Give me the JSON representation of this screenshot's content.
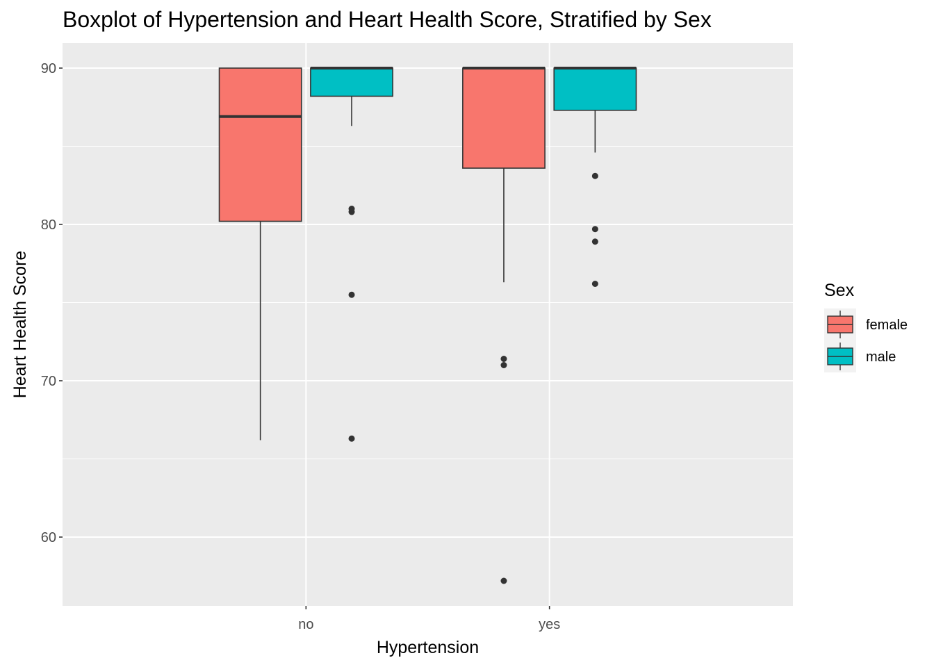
{
  "chart_data": {
    "type": "boxplot",
    "title": "Boxplot of Hypertension and Heart Health Score, Stratified by Sex",
    "xlabel": "Hypertension",
    "ylabel": "Heart Health Score",
    "categories": [
      "no",
      "yes"
    ],
    "ylim": [
      55.6,
      91.6
    ],
    "yticks": [
      60,
      70,
      80,
      90
    ],
    "grid": true,
    "legend": {
      "title": "Sex",
      "position": "right"
    },
    "series": [
      {
        "name": "female",
        "color": "#F8766D",
        "boxes": [
          {
            "category": "no",
            "lower_whisker": 66.2,
            "q1": 80.2,
            "median": 86.9,
            "q3": 90.0,
            "upper_whisker": 90.0,
            "outliers": []
          },
          {
            "category": "yes",
            "lower_whisker": 76.3,
            "q1": 83.6,
            "median": 90.0,
            "q3": 90.0,
            "upper_whisker": 90.0,
            "outliers": [
              71.4,
              71.0,
              57.2
            ]
          }
        ]
      },
      {
        "name": "male",
        "color": "#00BFC4",
        "boxes": [
          {
            "category": "no",
            "lower_whisker": 86.3,
            "q1": 88.2,
            "median": 90.0,
            "q3": 90.0,
            "upper_whisker": 90.0,
            "outliers": [
              81.0,
              80.8,
              75.5,
              66.3
            ]
          },
          {
            "category": "yes",
            "lower_whisker": 84.6,
            "q1": 87.3,
            "median": 90.0,
            "q3": 90.0,
            "upper_whisker": 90.0,
            "outliers": [
              83.1,
              79.7,
              78.9,
              76.2
            ]
          }
        ]
      }
    ]
  }
}
